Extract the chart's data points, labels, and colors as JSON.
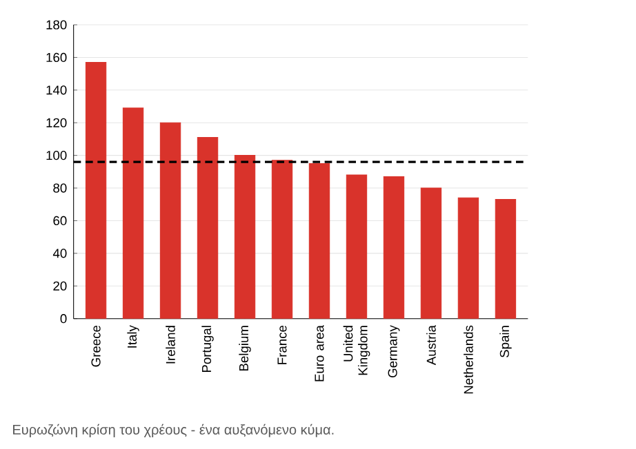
{
  "chart_data": {
    "type": "bar",
    "categories": [
      "Greece",
      "Italy",
      "Ireland",
      "Portugal",
      "Belgium",
      "France",
      "Euro area",
      "United Kingdom",
      "Germany",
      "Austria",
      "Netherlands",
      "Spain"
    ],
    "values": [
      157,
      129,
      120,
      111,
      100,
      97,
      95,
      88,
      87,
      80,
      74,
      73
    ],
    "color": "#d9332b",
    "ylim": [
      0,
      180
    ],
    "yticks": [
      0,
      20,
      40,
      60,
      80,
      100,
      120,
      140,
      160,
      180
    ],
    "grid": "y",
    "ref_lines": [
      {
        "axis": "y",
        "value": 96,
        "line_style": "dashed",
        "color": "#000000"
      }
    ],
    "annotations": [
      "Ευρωζώνη κρίση του χρέους - ένα αυξανόμενο κύμα."
    ]
  }
}
